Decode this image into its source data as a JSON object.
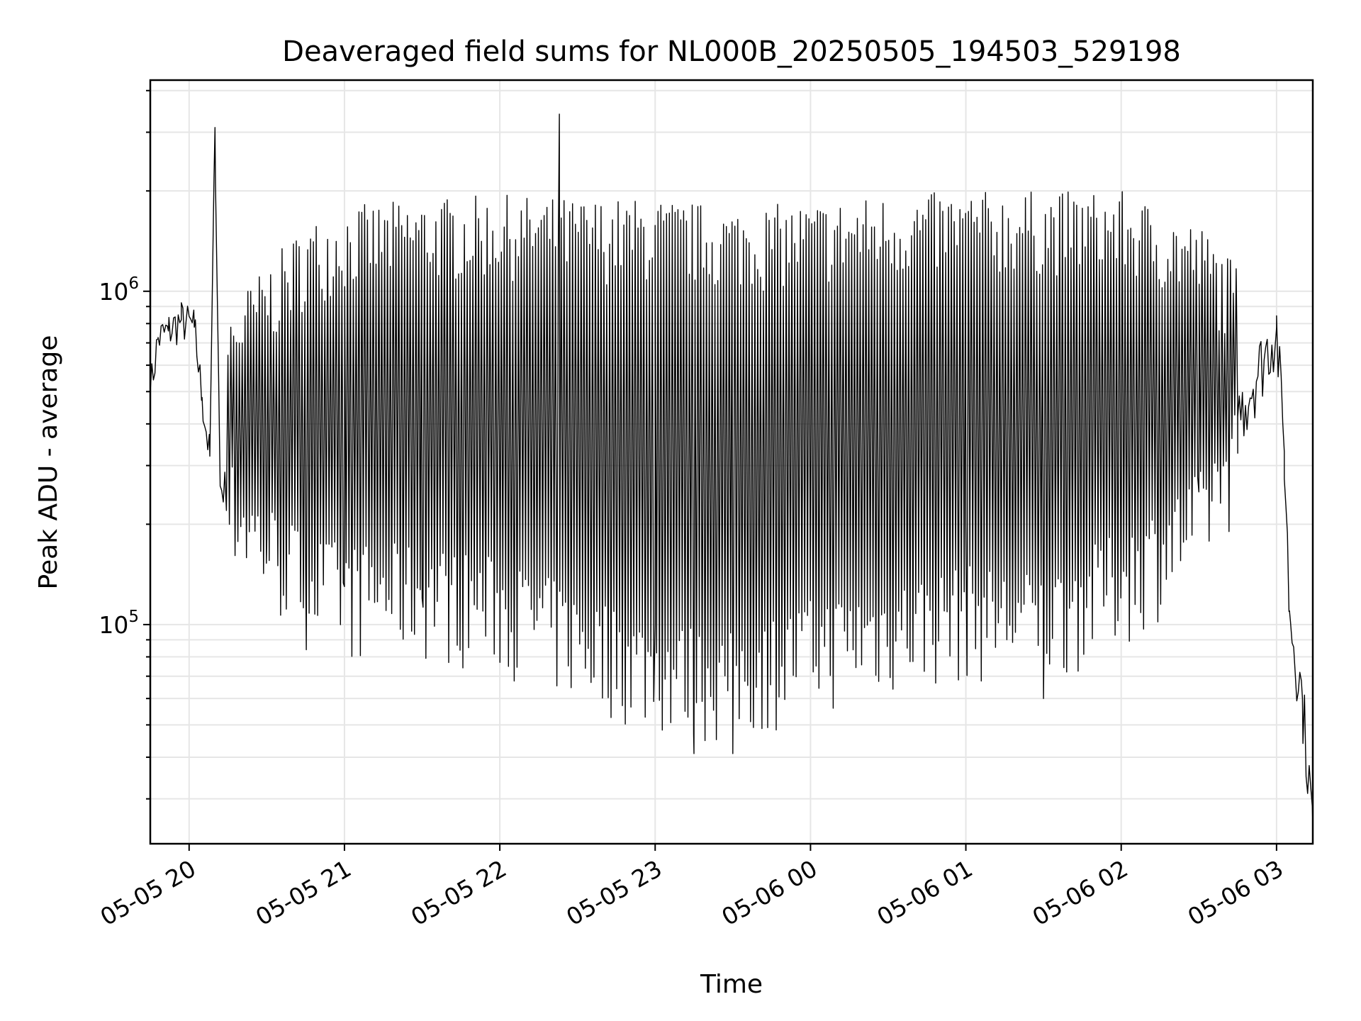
{
  "chart_data": {
    "type": "line",
    "title": "Deaveraged field sums for NL000B_20250505_194503_529198",
    "xlabel": "Time",
    "ylabel": "Peak ADU - average",
    "yscale": "log",
    "xlim": [
      "2025-05-05 19:45",
      "2025-05-06 03:14"
    ],
    "ylim": [
      22000,
      4300000
    ],
    "x_ticks": [
      "05-05 20",
      "05-05 21",
      "05-05 22",
      "05-05 23",
      "05-06 00",
      "05-06 01",
      "05-06 02",
      "05-06 03"
    ],
    "y_ticks": [
      {
        "base": "10",
        "exp": "5",
        "value": 100000
      },
      {
        "base": "10",
        "exp": "6",
        "value": 1000000
      }
    ],
    "grid": true,
    "line_color": "#000000",
    "series": [
      {
        "points": [
          [
            "2025-05-05 19:45",
            500000
          ],
          [
            "2025-05-05 19:48",
            720000
          ],
          [
            "2025-05-05 19:52",
            760000
          ],
          [
            "2025-05-05 19:57",
            820000
          ],
          [
            "2025-05-05 20:02",
            780000
          ],
          [
            "2025-05-05 20:05",
            480000
          ],
          [
            "2025-05-05 20:08",
            320000
          ],
          [
            "2025-05-05 20:10",
            3100000
          ],
          [
            "2025-05-05 20:12",
            260000
          ],
          [
            "2025-05-05 20:20",
            240000
          ],
          [
            "2025-05-05 20:30",
            180000
          ],
          [
            "2025-05-05 20:45",
            150000
          ],
          [
            "2025-05-05 21:00",
            130000
          ],
          [
            "2025-05-05 21:30",
            120000
          ],
          [
            "2025-05-05 22:00",
            200000
          ],
          [
            "2025-05-05 22:23",
            3400000
          ],
          [
            "2025-05-05 23:00",
            100000
          ],
          [
            "2025-05-05 23:15",
            41000
          ],
          [
            "2025-05-05 23:30",
            41000
          ],
          [
            "2025-05-06 00:00",
            150000
          ],
          [
            "2025-05-06 01:00",
            200000
          ],
          [
            "2025-05-06 01:30",
            60000
          ],
          [
            "2025-05-06 02:00",
            160000
          ],
          [
            "2025-05-06 02:30",
            250000
          ],
          [
            "2025-05-06 02:45",
            420000
          ],
          [
            "2025-05-06 03:00",
            780000
          ],
          [
            "2025-05-06 03:03",
            330000
          ],
          [
            "2025-05-06 03:05",
            110000
          ],
          [
            "2025-05-06 03:10",
            60000
          ],
          [
            "2025-05-06 03:14",
            25000
          ]
        ],
        "envelope": {
          "description_values_only": true,
          "upper": [
            [
              "2025-05-05 20:15",
              900000
            ],
            [
              "2025-05-05 20:30",
              1200000
            ],
            [
              "2025-05-05 20:45",
              1600000
            ],
            [
              "2025-05-05 21:00",
              1800000
            ],
            [
              "2025-05-05 21:30",
              1900000
            ],
            [
              "2025-05-05 22:00",
              1950000
            ],
            [
              "2025-05-05 22:30",
              1900000
            ],
            [
              "2025-05-05 23:00",
              1900000
            ],
            [
              "2025-05-05 23:30",
              1800000
            ],
            [
              "2025-05-06 00:00",
              1850000
            ],
            [
              "2025-05-06 00:30",
              1950000
            ],
            [
              "2025-05-06 01:00",
              2000000
            ],
            [
              "2025-05-06 01:30",
              2000000
            ],
            [
              "2025-05-06 02:00",
              2000000
            ],
            [
              "2025-05-06 02:30",
              1600000
            ],
            [
              "2025-05-06 02:45",
              1200000
            ]
          ],
          "lower": [
            [
              "2025-05-05 20:15",
              200000
            ],
            [
              "2025-05-05 20:30",
              150000
            ],
            [
              "2025-05-05 20:45",
              120000
            ],
            [
              "2025-05-05 21:00",
              110000
            ],
            [
              "2025-05-05 21:30",
              110000
            ],
            [
              "2025-05-05 22:00",
              100000
            ],
            [
              "2025-05-05 22:30",
              80000
            ],
            [
              "2025-05-05 23:00",
              65000
            ],
            [
              "2025-05-05 23:30",
              60000
            ],
            [
              "2025-05-06 00:00",
              75000
            ],
            [
              "2025-05-06 00:30",
              85000
            ],
            [
              "2025-05-06 01:00",
              95000
            ],
            [
              "2025-05-06 01:30",
              90000
            ],
            [
              "2025-05-06 02:00",
              120000
            ],
            [
              "2025-05-06 02:30",
              180000
            ],
            [
              "2025-05-06 02:45",
              300000
            ]
          ]
        }
      }
    ]
  }
}
